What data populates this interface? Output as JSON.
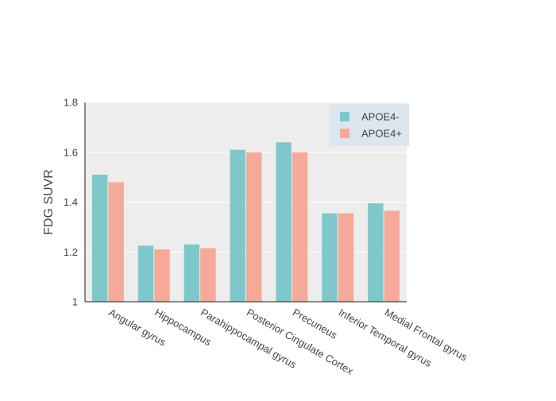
{
  "chart_data": {
    "type": "bar",
    "title": "",
    "xlabel": "",
    "ylabel": "FDG SUVR",
    "ylim": [
      1,
      1.8
    ],
    "yticks": [
      1,
      1.2,
      1.4,
      1.6,
      1.8
    ],
    "ytick_labels": [
      "1",
      "1.2",
      "1.4",
      "1.6",
      "1.8"
    ],
    "grid": true,
    "legend_position": "top-right",
    "categories": [
      "Angular gyrus",
      "Hippocampus",
      "Parahippocampal gyrus",
      "Posterior Cingulate Cortex",
      "Precuneus",
      "Inferior Temporal gyrus",
      "Medial Frontal gyrus"
    ],
    "series": [
      {
        "name": "APOE4-",
        "color": "#7ec8cb",
        "values": [
          1.51,
          1.225,
          1.23,
          1.61,
          1.64,
          1.355,
          1.395
        ]
      },
      {
        "name": "APOE4+",
        "color": "#f5aa99",
        "values": [
          1.48,
          1.21,
          1.215,
          1.6,
          1.6,
          1.355,
          1.365
        ]
      }
    ],
    "colors": {
      "plot_background": "#ededed",
      "legend_background": "#dde6ef",
      "grid": "#ffffff"
    }
  }
}
